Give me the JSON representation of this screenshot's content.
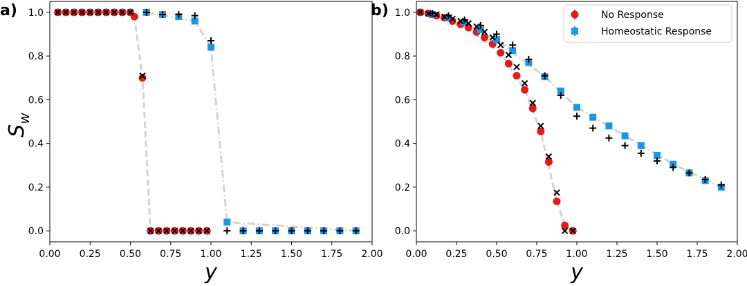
{
  "chart_data": [
    {
      "type": "scatter",
      "panel_label": "a)",
      "xlabel": "y",
      "ylabel_main": "S",
      "ylabel_sub": "w",
      "xlim": [
        0.0,
        2.0
      ],
      "ylim": [
        -0.05,
        1.05
      ],
      "xticks": [
        "0.00",
        "0.25",
        "0.50",
        "0.75",
        "1.00",
        "1.25",
        "1.50",
        "1.75",
        "2.00"
      ],
      "yticks": [
        "0.0",
        "0.2",
        "0.4",
        "0.6",
        "0.8",
        "1.0"
      ],
      "series": [
        {
          "name": "No Response",
          "marker": "circle",
          "color": "#e41a1c",
          "x": [
            0.05,
            0.1,
            0.15,
            0.2,
            0.25,
            0.3,
            0.35,
            0.4,
            0.45,
            0.5,
            0.525,
            0.575,
            0.625,
            0.675,
            0.725,
            0.775,
            0.825,
            0.875,
            0.925,
            0.975
          ],
          "y": [
            1.0,
            1.0,
            1.0,
            1.0,
            1.0,
            1.0,
            1.0,
            1.0,
            1.0,
            1.0,
            0.98,
            0.7,
            0.0,
            0.0,
            0.0,
            0.0,
            0.0,
            0.0,
            0.0,
            0.0
          ]
        },
        {
          "name": "Homeostatic Response",
          "marker": "square",
          "color": "#1e96e8",
          "x": [
            0.6,
            0.7,
            0.8,
            0.9,
            1.0,
            1.1,
            1.2,
            1.3,
            1.4,
            1.5,
            1.6,
            1.7,
            1.8,
            1.9
          ],
          "y": [
            1.0,
            0.99,
            0.98,
            0.96,
            0.84,
            0.04,
            0.0,
            0.0,
            0.0,
            0.0,
            0.0,
            0.0,
            0.0,
            0.0
          ]
        },
        {
          "name": "No Response (x markers)",
          "marker": "x",
          "color": "#000000",
          "x": [
            0.05,
            0.1,
            0.15,
            0.2,
            0.25,
            0.3,
            0.35,
            0.4,
            0.45,
            0.5,
            0.575,
            0.625,
            0.675,
            0.725,
            0.775,
            0.825,
            0.875,
            0.925,
            0.975
          ],
          "y": [
            1.0,
            1.0,
            1.0,
            1.0,
            1.0,
            1.0,
            1.0,
            1.0,
            1.0,
            1.0,
            0.71,
            0.0,
            0.0,
            0.0,
            0.0,
            0.0,
            0.0,
            0.0,
            0.0
          ]
        },
        {
          "name": "Homeostatic Response (+ markers)",
          "marker": "plus",
          "color": "#000000",
          "x": [
            0.6,
            0.7,
            0.8,
            0.9,
            1.0,
            1.1,
            1.2,
            1.3,
            1.4,
            1.5,
            1.6,
            1.7,
            1.8,
            1.9
          ],
          "y": [
            1.0,
            0.99,
            0.99,
            0.985,
            0.87,
            0.0,
            0.0,
            0.0,
            0.0,
            0.0,
            0.0,
            0.0,
            0.0,
            0.0
          ]
        }
      ],
      "guides": [
        {
          "style": "dashed",
          "x": [
            0.05,
            0.5,
            0.525,
            0.575,
            0.625,
            0.975
          ],
          "y": [
            1.0,
            1.0,
            0.98,
            0.7,
            0.0,
            0.0
          ]
        },
        {
          "style": "dashdot",
          "x": [
            0.6,
            0.9,
            1.0,
            1.1,
            1.9
          ],
          "y": [
            1.0,
            0.96,
            0.84,
            0.04,
            0.0
          ]
        }
      ]
    },
    {
      "type": "scatter",
      "panel_label": "b)",
      "xlabel": "y",
      "xlim": [
        0.0,
        2.0
      ],
      "ylim": [
        -0.05,
        1.05
      ],
      "xticks": [
        "0.00",
        "0.25",
        "0.50",
        "0.75",
        "1.00",
        "1.25",
        "1.50",
        "1.75",
        "2.00"
      ],
      "yticks": [
        "0.0",
        "0.2",
        "0.4",
        "0.6",
        "0.8",
        "1.0"
      ],
      "legend": {
        "position": "top-right",
        "entries": [
          "No Response",
          "Homeostatic Response"
        ]
      },
      "series": [
        {
          "name": "No Response",
          "marker": "circle",
          "color": "#e41a1c",
          "x": [
            0.025,
            0.075,
            0.125,
            0.175,
            0.225,
            0.275,
            0.325,
            0.375,
            0.425,
            0.475,
            0.525,
            0.575,
            0.625,
            0.675,
            0.725,
            0.775,
            0.825,
            0.875,
            0.925,
            0.975
          ],
          "y": [
            1.0,
            0.995,
            0.985,
            0.975,
            0.96,
            0.945,
            0.93,
            0.91,
            0.885,
            0.855,
            0.815,
            0.765,
            0.71,
            0.645,
            0.56,
            0.455,
            0.315,
            0.135,
            0.025,
            0.0
          ]
        },
        {
          "name": "Homeostatic Response",
          "marker": "square",
          "color": "#1e96e8",
          "x": [
            0.1,
            0.2,
            0.3,
            0.4,
            0.5,
            0.6,
            0.7,
            0.8,
            0.9,
            1.0,
            1.1,
            1.2,
            1.3,
            1.4,
            1.5,
            1.6,
            1.7,
            1.8,
            1.9
          ],
          "y": [
            0.99,
            0.975,
            0.955,
            0.92,
            0.875,
            0.825,
            0.77,
            0.705,
            0.64,
            0.565,
            0.52,
            0.48,
            0.435,
            0.39,
            0.345,
            0.305,
            0.265,
            0.23,
            0.2
          ]
        },
        {
          "name": "No Response (x markers)",
          "marker": "x",
          "color": "#000000",
          "x": [
            0.025,
            0.075,
            0.125,
            0.175,
            0.225,
            0.275,
            0.325,
            0.375,
            0.425,
            0.475,
            0.525,
            0.575,
            0.625,
            0.675,
            0.725,
            0.775,
            0.825,
            0.875,
            0.925,
            0.975
          ],
          "y": [
            1.0,
            0.995,
            0.99,
            0.98,
            0.97,
            0.96,
            0.95,
            0.935,
            0.91,
            0.885,
            0.85,
            0.805,
            0.75,
            0.675,
            0.585,
            0.48,
            0.34,
            0.175,
            0.0,
            0.0
          ]
        },
        {
          "name": "Homeostatic Response (+ markers)",
          "marker": "plus",
          "color": "#000000",
          "x": [
            0.1,
            0.2,
            0.3,
            0.4,
            0.5,
            0.6,
            0.7,
            0.8,
            0.9,
            1.0,
            1.1,
            1.2,
            1.3,
            1.4,
            1.5,
            1.6,
            1.7,
            1.8,
            1.9
          ],
          "y": [
            0.995,
            0.985,
            0.965,
            0.94,
            0.9,
            0.85,
            0.785,
            0.71,
            0.62,
            0.525,
            0.47,
            0.425,
            0.39,
            0.355,
            0.32,
            0.29,
            0.265,
            0.235,
            0.21
          ]
        }
      ],
      "guides": [
        {
          "style": "dashed",
          "x": [
            0.025,
            0.275,
            0.525,
            0.675,
            0.775,
            0.875,
            0.925,
            0.975
          ],
          "y": [
            1.0,
            0.945,
            0.815,
            0.645,
            0.455,
            0.135,
            0.025,
            0.0
          ]
        },
        {
          "style": "dashdot",
          "x": [
            0.1,
            0.5,
            0.8,
            1.0,
            1.3,
            1.6,
            1.9
          ],
          "y": [
            0.99,
            0.875,
            0.705,
            0.565,
            0.435,
            0.305,
            0.2
          ]
        }
      ]
    }
  ]
}
